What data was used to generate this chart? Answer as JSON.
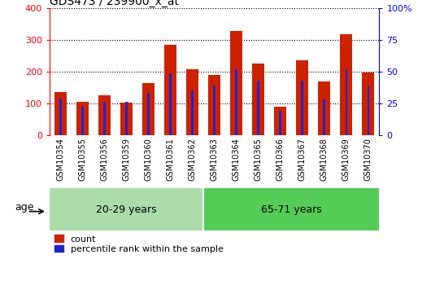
{
  "title": "GDS473 / 239900_x_at",
  "samples": [
    "GSM10354",
    "GSM10355",
    "GSM10356",
    "GSM10359",
    "GSM10360",
    "GSM10361",
    "GSM10362",
    "GSM10363",
    "GSM10364",
    "GSM10365",
    "GSM10366",
    "GSM10367",
    "GSM10368",
    "GSM10369",
    "GSM10370"
  ],
  "count": [
    135,
    105,
    125,
    103,
    165,
    285,
    207,
    190,
    330,
    225,
    90,
    235,
    170,
    318,
    198
  ],
  "percentile": [
    29,
    22,
    26,
    26,
    33,
    49,
    35,
    39,
    52,
    43,
    19,
    43,
    28,
    52,
    39
  ],
  "group1_label": "20-29 years",
  "group2_label": "65-71 years",
  "group1_count": 7,
  "group2_count": 8,
  "bar_color": "#cc2200",
  "pct_color": "#2222cc",
  "xtick_bg": "#d0d0d0",
  "group1_bg": "#aaddaa",
  "group2_bg": "#55cc55",
  "ylim_left": [
    0,
    400
  ],
  "ylim_right": [
    0,
    100
  ],
  "yticks_left": [
    0,
    100,
    200,
    300,
    400
  ],
  "yticks_right": [
    0,
    25,
    50,
    75,
    100
  ],
  "age_label": "age",
  "legend_count_label": "count",
  "legend_pct_label": "percentile rank within the sample"
}
